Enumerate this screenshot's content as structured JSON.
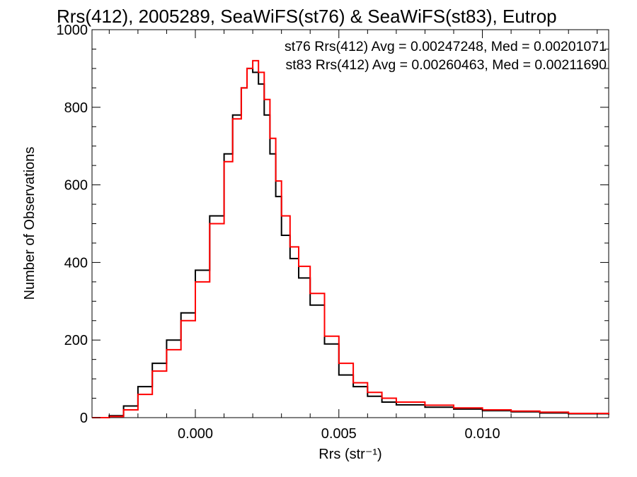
{
  "chart_data": {
    "type": "line",
    "title": "Rrs(412), 2005289, SeaWiFS(st76) & SeaWiFS(st83), Eutrop",
    "xlabel": "Rrs (str⁻¹)",
    "ylabel": "Number of Observations",
    "xlim": [
      -0.0036,
      0.0144
    ],
    "ylim": [
      0,
      1000
    ],
    "x_ticks": [
      0.0,
      0.005,
      0.01
    ],
    "x_tick_labels": [
      "0.000",
      "0.005",
      "0.010"
    ],
    "y_ticks": [
      0,
      200,
      400,
      600,
      800,
      1000
    ],
    "y_tick_labels": [
      "0",
      "200",
      "400",
      "600",
      "800",
      "1000"
    ],
    "grid": false,
    "legend_placement": "top-right",
    "annotations": [
      {
        "text": "st76 Rrs(412) Avg = 0.00247248, Med = 0.00201071",
        "color": "#000000"
      },
      {
        "text": "st83 Rrs(412) Avg = 0.00260463, Med = 0.00211690",
        "color": "#ff0000"
      }
    ],
    "series": [
      {
        "color": "#000000",
        "x": [
          -0.0036,
          -0.003,
          -0.0025,
          -0.002,
          -0.0015,
          -0.001,
          -0.0005,
          0.0,
          0.0005,
          0.001,
          0.0013,
          0.0016,
          0.0018,
          0.002,
          0.0022,
          0.0024,
          0.0026,
          0.0028,
          0.003,
          0.0033,
          0.0036,
          0.004,
          0.0045,
          0.005,
          0.0055,
          0.006,
          0.0065,
          0.007,
          0.008,
          0.009,
          0.01,
          0.011,
          0.012,
          0.013,
          0.0144
        ],
        "values": [
          0,
          5,
          30,
          80,
          140,
          200,
          270,
          380,
          520,
          680,
          780,
          850,
          900,
          890,
          860,
          780,
          680,
          570,
          470,
          410,
          360,
          290,
          190,
          110,
          80,
          55,
          40,
          33,
          27,
          22,
          18,
          15,
          12,
          10,
          8
        ]
      },
      {
        "color": "#ff0000",
        "x": [
          -0.0036,
          -0.003,
          -0.0025,
          -0.002,
          -0.0015,
          -0.001,
          -0.0005,
          0.0,
          0.0005,
          0.001,
          0.0013,
          0.0016,
          0.0018,
          0.002,
          0.0022,
          0.0024,
          0.0026,
          0.0028,
          0.003,
          0.0033,
          0.0036,
          0.004,
          0.0045,
          0.005,
          0.0055,
          0.006,
          0.0065,
          0.007,
          0.008,
          0.009,
          0.01,
          0.011,
          0.012,
          0.013,
          0.0144
        ],
        "values": [
          0,
          3,
          20,
          60,
          120,
          175,
          250,
          350,
          500,
          660,
          770,
          850,
          900,
          920,
          890,
          820,
          720,
          610,
          520,
          440,
          390,
          320,
          210,
          140,
          90,
          65,
          50,
          40,
          32,
          25,
          20,
          17,
          14,
          11,
          9
        ]
      }
    ]
  }
}
